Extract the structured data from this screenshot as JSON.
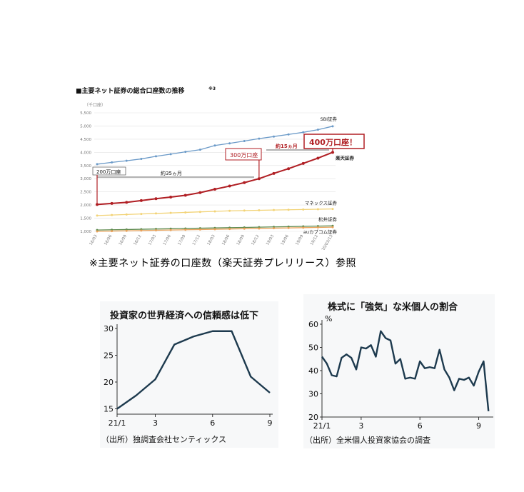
{
  "top": {
    "heading": "■主要ネット証券の総合口座数の推移",
    "heading_note": "※3",
    "unit": "（千口座）",
    "caption": "※主要ネット証券の口座数（楽天証券プレリリース）参照",
    "annotations": {
      "a200": "200万口座",
      "a300": "300万口座",
      "a400": "400万口座！",
      "m35": "約35ヵ月",
      "m15": "約15ヵ月"
    }
  },
  "chart_data": [
    {
      "type": "line",
      "y_unit": "（千口座）",
      "ylim": [
        1000,
        5500
      ],
      "y_ticks": [
        "1,000",
        "1,500",
        "2,000",
        "2,500",
        "3,000",
        "3,500",
        "4,000",
        "4,500",
        "5,000",
        "5,500"
      ],
      "y_tick_values": [
        1000,
        1500,
        2000,
        2500,
        3000,
        3500,
        4000,
        4500,
        5000,
        5500
      ],
      "x": [
        "16/03",
        "16/06",
        "16/09",
        "16/12",
        "17/03",
        "17/06",
        "17/09",
        "17/12",
        "18/03",
        "18/06",
        "18/09",
        "18/12",
        "19/03",
        "19/06",
        "19/09",
        "19/12",
        "20/03/13"
      ],
      "series": [
        {
          "name": "SBI証券",
          "color": "#6b9ac8",
          "values": [
            3550,
            3620,
            3680,
            3750,
            3850,
            3930,
            4020,
            4100,
            4260,
            4340,
            4430,
            4520,
            4600,
            4680,
            4760,
            4860,
            4990
          ]
        },
        {
          "name": "楽天証券",
          "color": "#b01e23",
          "values": [
            2020,
            2060,
            2100,
            2170,
            2240,
            2300,
            2370,
            2470,
            2600,
            2720,
            2850,
            3000,
            3200,
            3380,
            3580,
            3780,
            4000
          ]
        },
        {
          "name": "マネックス証券",
          "color": "#f2d377",
          "values": [
            1600,
            1620,
            1640,
            1660,
            1680,
            1700,
            1720,
            1740,
            1760,
            1780,
            1790,
            1800,
            1810,
            1820,
            1830,
            1840,
            1850
          ]
        },
        {
          "name": "松井証券",
          "color": "#5e8a4e",
          "values": [
            1050,
            1060,
            1070,
            1080,
            1090,
            1100,
            1110,
            1120,
            1130,
            1140,
            1150,
            1160,
            1170,
            1180,
            1190,
            1200,
            1210
          ]
        },
        {
          "name": "auカブコム証券",
          "color": "#e9a25a",
          "values": [
            1000,
            1010,
            1020,
            1030,
            1040,
            1050,
            1060,
            1070,
            1080,
            1090,
            1100,
            1110,
            1120,
            1130,
            1140,
            1150,
            1160
          ]
        }
      ]
    },
    {
      "type": "line",
      "title": "投資家の世界経済への信頼感は低下",
      "ylim": [
        14,
        30
      ],
      "y_ticks": [
        "15",
        "20",
        "25",
        "30"
      ],
      "y_tick_values": [
        15,
        20,
        25,
        30
      ],
      "x_ticks": [
        "21/1",
        "3",
        "6",
        "9"
      ],
      "x_tick_positions": [
        1,
        3,
        6,
        9
      ],
      "xlim": [
        1,
        9
      ],
      "source": "（出所）独調査会社センティックス",
      "series": [
        {
          "color": "#1d3a4e",
          "x": [
            1,
            2,
            3,
            4,
            5,
            6,
            7,
            8,
            9
          ],
          "values": [
            15,
            17.5,
            20.5,
            27,
            28.5,
            29.5,
            29.5,
            21,
            18
          ]
        }
      ]
    },
    {
      "type": "line",
      "title": "株式に「強気」な米個人の割合",
      "y_unit": "%",
      "ylim": [
        20,
        60
      ],
      "y_ticks": [
        "20",
        "30",
        "40",
        "50",
        "60"
      ],
      "y_tick_values": [
        20,
        30,
        40,
        50,
        60
      ],
      "x_ticks": [
        "21/1",
        "3",
        "6",
        "9"
      ],
      "x_tick_positions": [
        1,
        3,
        6,
        9
      ],
      "xlim": [
        1,
        9.6
      ],
      "source": "（出所）全米個人投資家協会の調査",
      "series": [
        {
          "color": "#1d3a4e",
          "x": [
            1,
            1.25,
            1.5,
            1.75,
            2,
            2.25,
            2.5,
            2.75,
            3,
            3.25,
            3.5,
            3.75,
            4,
            4.25,
            4.5,
            4.75,
            5,
            5.25,
            5.5,
            5.75,
            6,
            6.25,
            6.5,
            6.75,
            7,
            7.25,
            7.5,
            7.75,
            8,
            8.25,
            8.5,
            8.75,
            9,
            9.25,
            9.5
          ],
          "values": [
            46,
            43,
            38,
            37.5,
            45.5,
            47,
            45.5,
            40.5,
            50,
            49.5,
            51,
            46,
            57,
            54,
            53,
            43,
            45,
            36.5,
            37,
            36.5,
            44,
            41,
            41.5,
            41,
            49,
            40.5,
            37,
            31.5,
            36.5,
            36,
            37,
            33.5,
            39.5,
            44,
            22.5
          ]
        }
      ]
    }
  ]
}
